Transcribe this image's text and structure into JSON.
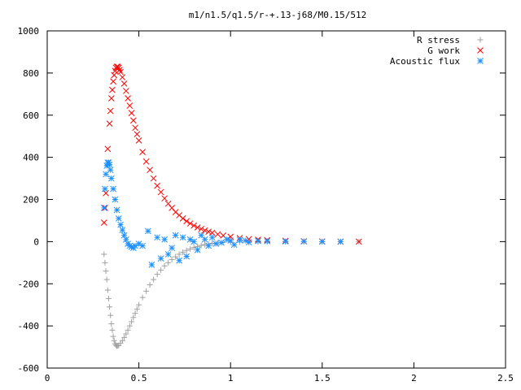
{
  "chart_data": {
    "type": "scatter",
    "title": "m1/n1.5/q1.5/r-+.13-j68/M0.15/512",
    "xlabel": "",
    "ylabel": "",
    "xlim": [
      0,
      2.5
    ],
    "ylim": [
      -600,
      1000
    ],
    "x_ticks": [
      "0",
      "0.5",
      "1",
      "1.5",
      "2",
      "2.5"
    ],
    "y_ticks": [
      "1000",
      "800",
      "600",
      "400",
      "200",
      "0",
      "-200",
      "-400",
      "-600"
    ],
    "x_tick_values": [
      0,
      0.5,
      1,
      1.5,
      2,
      2.5
    ],
    "y_tick_values": [
      1000,
      800,
      600,
      400,
      200,
      0,
      -200,
      -400,
      -600
    ],
    "grid": false,
    "legend_position": "top-right",
    "series": [
      {
        "name": "R stress",
        "marker": "plus",
        "color": "#a0a0a0",
        "x": [
          0.31,
          0.315,
          0.32,
          0.325,
          0.33,
          0.335,
          0.34,
          0.345,
          0.35,
          0.355,
          0.36,
          0.365,
          0.37,
          0.375,
          0.38,
          0.385,
          0.39,
          0.4,
          0.41,
          0.42,
          0.43,
          0.44,
          0.45,
          0.46,
          0.47,
          0.48,
          0.49,
          0.5,
          0.52,
          0.54,
          0.56,
          0.58,
          0.6,
          0.62,
          0.64,
          0.66,
          0.68,
          0.7,
          0.72,
          0.74,
          0.76,
          0.78,
          0.8,
          0.82,
          0.84,
          0.86,
          0.88,
          0.9,
          0.93,
          0.96,
          1.0,
          1.05,
          1.1,
          1.15,
          1.2,
          1.3,
          1.4,
          1.5,
          1.6,
          1.7
        ],
        "y": [
          -60,
          -100,
          -140,
          -180,
          -230,
          -270,
          -310,
          -350,
          -390,
          -420,
          -450,
          -470,
          -485,
          -492,
          -495,
          -494,
          -492,
          -482,
          -470,
          -455,
          -438,
          -420,
          -400,
          -380,
          -360,
          -340,
          -320,
          -300,
          -265,
          -235,
          -205,
          -180,
          -155,
          -135,
          -115,
          -100,
          -85,
          -72,
          -60,
          -50,
          -42,
          -35,
          -28,
          -23,
          -18,
          -14,
          -11,
          -8,
          -6,
          -4,
          -3,
          -2,
          -1,
          -1,
          0,
          0,
          0,
          0,
          0,
          0
        ]
      },
      {
        "name": "G work",
        "marker": "cross",
        "color": "#ff0000",
        "x": [
          0.31,
          0.315,
          0.32,
          0.33,
          0.34,
          0.345,
          0.35,
          0.355,
          0.36,
          0.365,
          0.37,
          0.375,
          0.38,
          0.385,
          0.39,
          0.395,
          0.4,
          0.41,
          0.42,
          0.43,
          0.44,
          0.45,
          0.46,
          0.47,
          0.48,
          0.49,
          0.5,
          0.52,
          0.54,
          0.56,
          0.58,
          0.6,
          0.62,
          0.64,
          0.66,
          0.68,
          0.7,
          0.72,
          0.74,
          0.76,
          0.78,
          0.8,
          0.82,
          0.84,
          0.86,
          0.88,
          0.9,
          0.93,
          0.96,
          1.0,
          1.05,
          1.1,
          1.15,
          1.2,
          1.3,
          1.4,
          1.5,
          1.6,
          1.7
        ],
        "y": [
          90,
          160,
          230,
          440,
          560,
          620,
          680,
          720,
          760,
          790,
          810,
          825,
          830,
          830,
          825,
          815,
          805,
          780,
          750,
          715,
          680,
          645,
          610,
          575,
          540,
          510,
          480,
          425,
          380,
          340,
          300,
          265,
          235,
          205,
          180,
          160,
          140,
          125,
          110,
          97,
          86,
          76,
          67,
          60,
          53,
          47,
          42,
          35,
          29,
          23,
          17,
          12,
          9,
          7,
          4,
          2,
          1,
          0,
          0
        ]
      },
      {
        "name": "Acoustic flux",
        "marker": "star",
        "color": "#1e90ff",
        "x": [
          0.31,
          0.315,
          0.32,
          0.325,
          0.33,
          0.335,
          0.34,
          0.345,
          0.35,
          0.36,
          0.37,
          0.38,
          0.39,
          0.4,
          0.41,
          0.42,
          0.43,
          0.44,
          0.45,
          0.46,
          0.47,
          0.48,
          0.5,
          0.52,
          0.55,
          0.57,
          0.6,
          0.62,
          0.64,
          0.66,
          0.68,
          0.7,
          0.72,
          0.74,
          0.76,
          0.78,
          0.8,
          0.82,
          0.84,
          0.86,
          0.88,
          0.9,
          0.92,
          0.95,
          0.98,
          1.0,
          1.02,
          1.05,
          1.08,
          1.1,
          1.15,
          1.2,
          1.3,
          1.4,
          1.5,
          1.6
        ],
        "y": [
          160,
          250,
          320,
          360,
          375,
          375,
          365,
          340,
          300,
          250,
          200,
          150,
          110,
          80,
          55,
          30,
          10,
          -10,
          -20,
          -25,
          -30,
          -20,
          -10,
          -20,
          50,
          -110,
          20,
          -80,
          10,
          -60,
          -30,
          30,
          -90,
          20,
          -70,
          10,
          0,
          -40,
          30,
          10,
          -20,
          20,
          -10,
          -5,
          10,
          5,
          -15,
          8,
          5,
          -3,
          3,
          2,
          1,
          1,
          0,
          0
        ]
      }
    ]
  }
}
